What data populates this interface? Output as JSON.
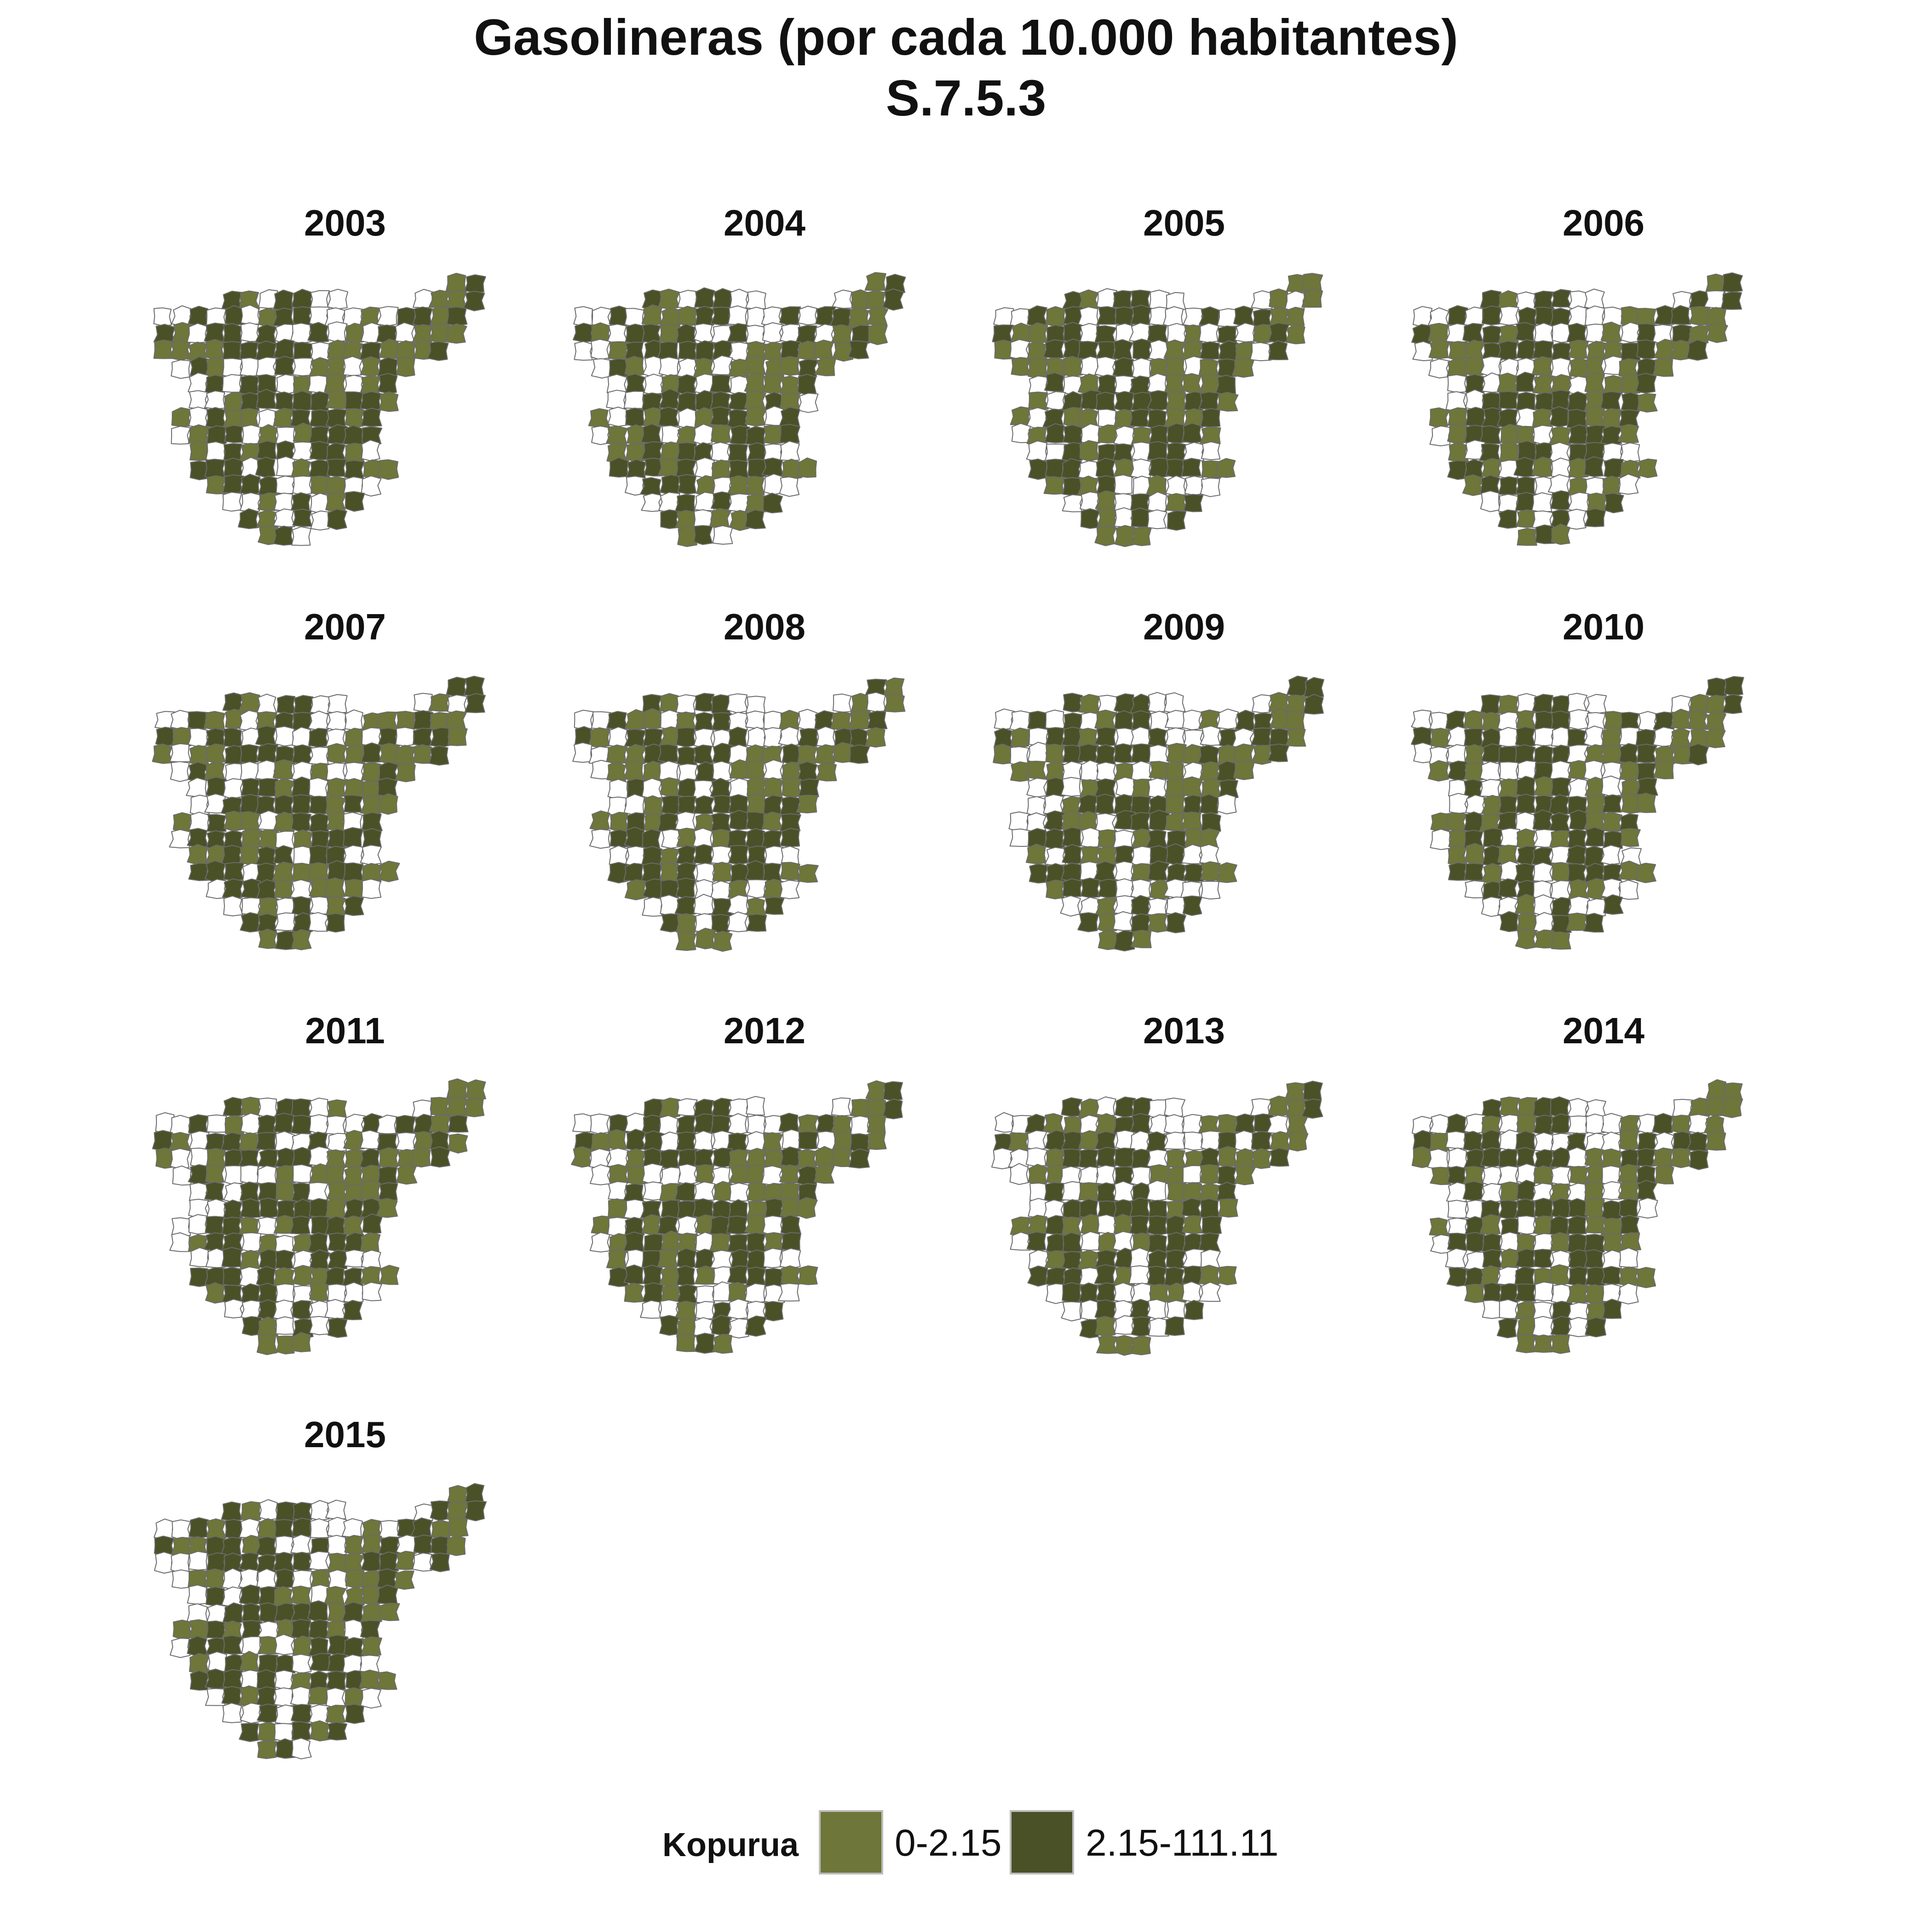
{
  "title": {
    "line1": "Gasolineras (por cada 10.000 habitantes)",
    "line2": "S.7.5.3"
  },
  "colors": {
    "low": "#6e7639",
    "high": "#4a5127",
    "none": "#ffffff",
    "border": "#6b6b6b"
  },
  "panels": [
    {
      "year": "2003"
    },
    {
      "year": "2004"
    },
    {
      "year": "2005"
    },
    {
      "year": "2006"
    },
    {
      "year": "2007"
    },
    {
      "year": "2008"
    },
    {
      "year": "2009"
    },
    {
      "year": "2010"
    },
    {
      "year": "2011"
    },
    {
      "year": "2012"
    },
    {
      "year": "2013"
    },
    {
      "year": "2014"
    },
    {
      "year": "2015"
    }
  ],
  "legend": {
    "title": "Kopurua",
    "items": [
      {
        "label": "0-2.15",
        "color": "#6e7639"
      },
      {
        "label": "2.15-111.11",
        "color": "#4a5127"
      }
    ]
  }
}
